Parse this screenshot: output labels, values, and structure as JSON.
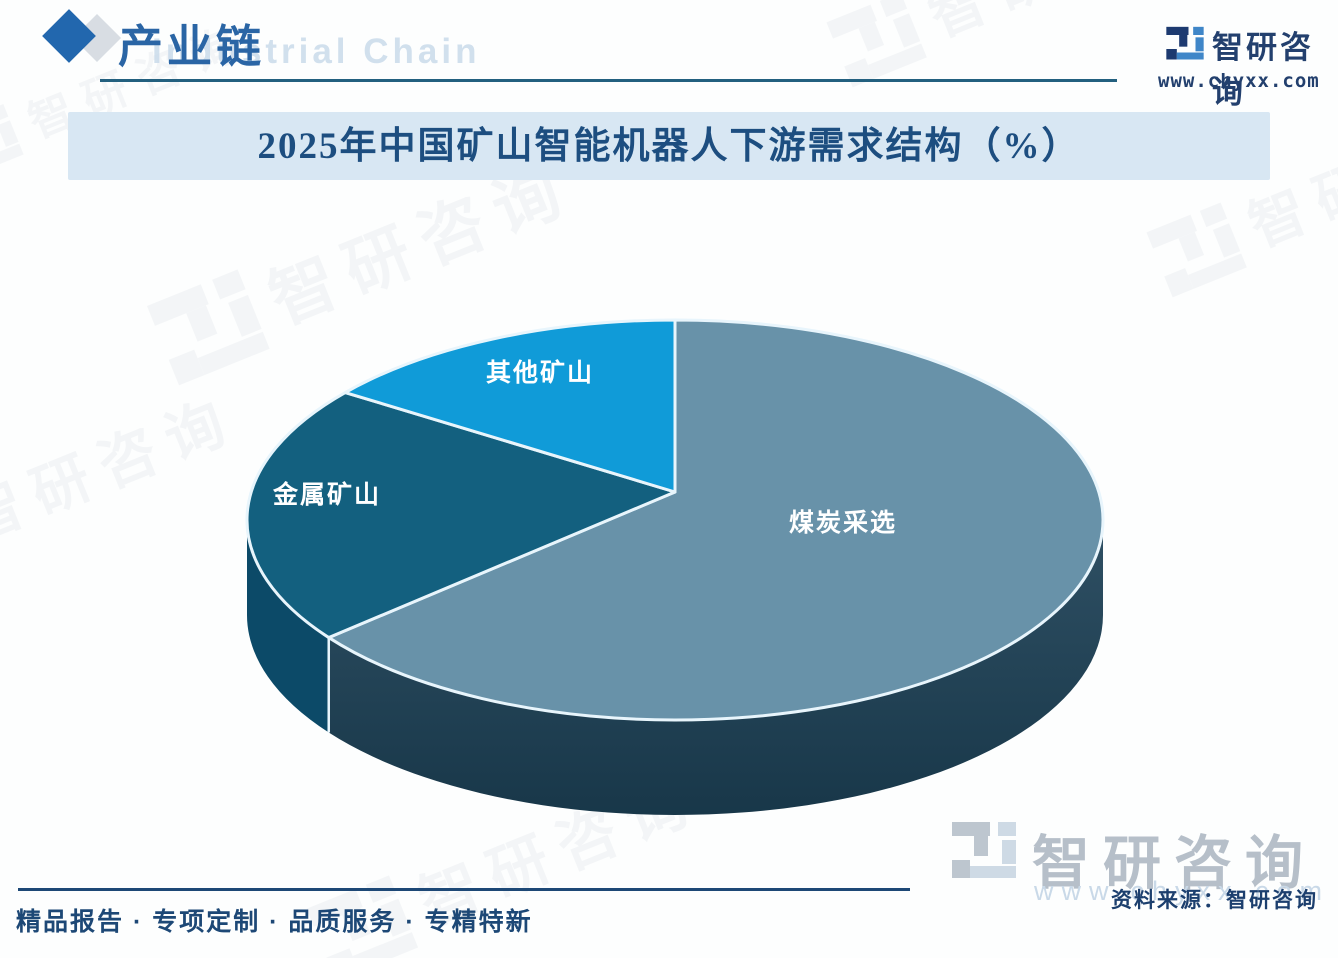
{
  "header": {
    "section_title": "产业链",
    "watermark_en": "Industrial Chain"
  },
  "brand": {
    "name": "智研咨询",
    "url": "www.chyxx.com",
    "watermark_text": "智研咨询"
  },
  "chart_data": {
    "type": "pie",
    "title": "2025年中国矿山智能机器人下游需求结构（%）",
    "unit": "%",
    "labels": [
      "煤炭采选",
      "金属矿山",
      "其他矿山"
    ],
    "values": [
      65,
      21,
      14
    ],
    "values_are_estimates": true,
    "colors": [
      "#6892a9",
      "#13607f",
      "#109bd8"
    ],
    "side_colors": [
      "url(#coalSideGrad)",
      "#0c4a68",
      "#0b7fb5"
    ],
    "separator_color": "#e8f5fc",
    "start_angle_deg": 0,
    "direction": "clockwise",
    "style": "3d",
    "legend": "none"
  },
  "source": {
    "label": "资料来源：智研咨询"
  },
  "footer": {
    "tagline": "精品报告 · 专项定制 · 品质服务 · 专精特新"
  }
}
